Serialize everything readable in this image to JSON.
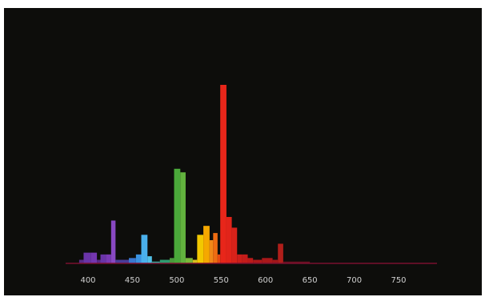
{
  "chart_data": {
    "type": "bar",
    "title": "",
    "xlabel": "",
    "ylabel": "",
    "x_ticks": [
      "400",
      "450",
      "500",
      "550",
      "600",
      "650",
      "700",
      "750"
    ],
    "xlim": [
      382,
      790
    ],
    "ylim": [
      0,
      100
    ],
    "grid": false,
    "colors": {
      "background": "#0d0d0b",
      "baseline": "#7a1030",
      "tick_text": "#cfcfcf"
    },
    "bars": [
      {
        "x0": 390,
        "x1": 395,
        "value": 2,
        "color": "#5a2a8a"
      },
      {
        "x0": 395,
        "x1": 403,
        "value": 6,
        "color": "#6a34a8"
      },
      {
        "x0": 403,
        "x1": 410,
        "value": 6,
        "color": "#7436b0"
      },
      {
        "x0": 410,
        "x1": 414,
        "value": 2,
        "color": "#5a2a8a"
      },
      {
        "x0": 414,
        "x1": 420,
        "value": 5,
        "color": "#6a34a8"
      },
      {
        "x0": 420,
        "x1": 426,
        "value": 5,
        "color": "#7a3ab6"
      },
      {
        "x0": 426,
        "x1": 431,
        "value": 24,
        "color": "#8848c2"
      },
      {
        "x0": 431,
        "x1": 446,
        "value": 2,
        "color": "#4a3c9a"
      },
      {
        "x0": 446,
        "x1": 454,
        "value": 3,
        "color": "#3a78d0"
      },
      {
        "x0": 454,
        "x1": 460,
        "value": 5,
        "color": "#3a92e0"
      },
      {
        "x0": 460,
        "x1": 467,
        "value": 16,
        "color": "#4ab0ec"
      },
      {
        "x0": 467,
        "x1": 472,
        "value": 4,
        "color": "#52c0e6"
      },
      {
        "x0": 472,
        "x1": 481,
        "value": 1,
        "color": "#3aa8a0"
      },
      {
        "x0": 481,
        "x1": 492,
        "value": 2,
        "color": "#2f9a70"
      },
      {
        "x0": 492,
        "x1": 497,
        "value": 3,
        "color": "#4a9a3c"
      },
      {
        "x0": 497,
        "x1": 504,
        "value": 53,
        "color": "#4aa83a"
      },
      {
        "x0": 504,
        "x1": 510,
        "value": 51,
        "color": "#62b23e"
      },
      {
        "x0": 510,
        "x1": 518,
        "value": 3,
        "color": "#7ab83a"
      },
      {
        "x0": 518,
        "x1": 523,
        "value": 2,
        "color": "#d8c020"
      },
      {
        "x0": 523,
        "x1": 530,
        "value": 16,
        "color": "#f2c800"
      },
      {
        "x0": 530,
        "x1": 537,
        "value": 21,
        "color": "#f5a800"
      },
      {
        "x0": 537,
        "x1": 541,
        "value": 13,
        "color": "#f08818"
      },
      {
        "x0": 541,
        "x1": 546,
        "value": 17,
        "color": "#ee6c12"
      },
      {
        "x0": 546,
        "x1": 549,
        "value": 5,
        "color": "#e84a10"
      },
      {
        "x0": 549,
        "x1": 556,
        "value": 100,
        "color": "#e8261a"
      },
      {
        "x0": 556,
        "x1": 562,
        "value": 26,
        "color": "#e2241a"
      },
      {
        "x0": 562,
        "x1": 568,
        "value": 20,
        "color": "#d8221a"
      },
      {
        "x0": 568,
        "x1": 574,
        "value": 5,
        "color": "#cc1e1a"
      },
      {
        "x0": 574,
        "x1": 580,
        "value": 5,
        "color": "#c41c1a"
      },
      {
        "x0": 580,
        "x1": 586,
        "value": 3,
        "color": "#bc1a1a"
      },
      {
        "x0": 586,
        "x1": 596,
        "value": 2,
        "color": "#b0181a"
      },
      {
        "x0": 596,
        "x1": 608,
        "value": 3,
        "color": "#aa181a"
      },
      {
        "x0": 608,
        "x1": 614,
        "value": 2,
        "color": "#a2161a"
      },
      {
        "x0": 614,
        "x1": 620,
        "value": 11,
        "color": "#b01e1a"
      },
      {
        "x0": 620,
        "x1": 650,
        "value": 1,
        "color": "#6a1020"
      }
    ]
  }
}
